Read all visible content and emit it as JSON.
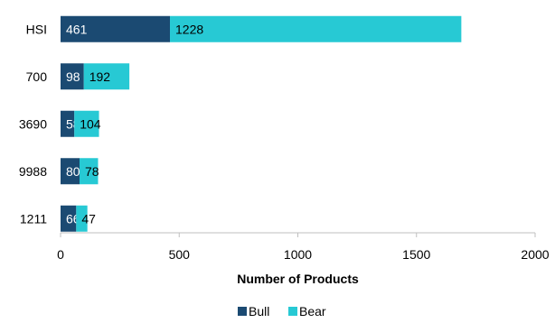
{
  "chart_data": {
    "type": "bar",
    "orientation": "horizontal",
    "stacked": true,
    "categories": [
      "HSI",
      "700",
      "3690",
      "9988",
      "1211"
    ],
    "series": [
      {
        "name": "Bull",
        "values": [
          461,
          98,
          58,
          80,
          66
        ],
        "color": "#1b4a72",
        "label_color": "#ffffff"
      },
      {
        "name": "Bear",
        "values": [
          1228,
          192,
          104,
          78,
          47
        ],
        "color": "#27c9d4",
        "label_color": "#000000"
      }
    ],
    "xlabel": "Number of Products",
    "xlim": [
      0,
      2000
    ],
    "xticks": [
      0,
      500,
      1000,
      1500,
      2000
    ],
    "grid": false,
    "legend_position": "bottom"
  }
}
